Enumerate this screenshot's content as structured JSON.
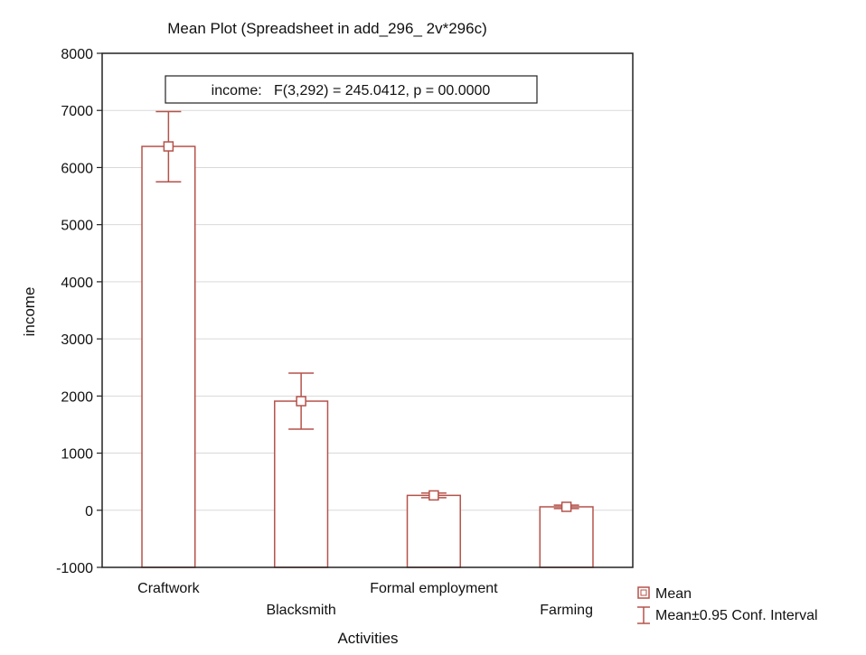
{
  "chart_data": {
    "type": "bar",
    "title": "Mean Plot (Spreadsheet in add_296_ 2v*296c)",
    "annotation": "income:   F(3,292) = 245.0412, p = 00.0000",
    "xlabel": "Activities",
    "ylabel": "income",
    "ylim": [
      -1000,
      8000
    ],
    "yticks": [
      "-1000",
      "0",
      "1000",
      "2000",
      "3000",
      "4000",
      "5000",
      "6000",
      "7000",
      "8000"
    ],
    "grid": true,
    "legend_position": "bottom-right",
    "categories": [
      "Craftwork",
      "Blacksmith",
      "Formal employment",
      "Farming"
    ],
    "series": [
      {
        "name": "Mean",
        "values": [
          6370,
          1910,
          260,
          60
        ]
      },
      {
        "name": "Mean±0.95 Conf. Interval",
        "lower": [
          5750,
          1420,
          220,
          30
        ],
        "upper": [
          6980,
          2400,
          300,
          90
        ]
      }
    ],
    "colors": {
      "bar": "#b5524a",
      "axis": "#222222",
      "grid": "#d9d9d9"
    }
  }
}
